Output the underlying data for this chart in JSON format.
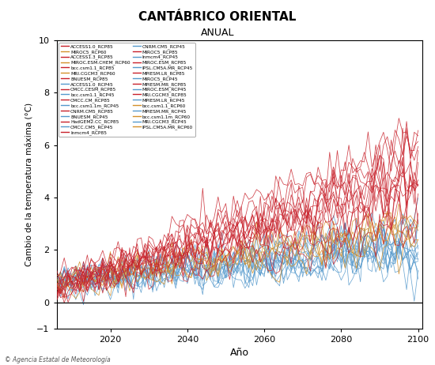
{
  "title": "CANTÁBRICO ORIENTAL",
  "subtitle": "ANUAL",
  "xlabel": "Año",
  "ylabel": "Cambio de la temperatura máxima (°C)",
  "xlim": [
    2006,
    2101
  ],
  "ylim": [
    -1,
    10
  ],
  "yticks": [
    -1,
    0,
    2,
    4,
    6,
    8,
    10
  ],
  "xticks": [
    2020,
    2040,
    2060,
    2080,
    2100
  ],
  "copyright_text": "© Agencia Estatal de Meteorología",
  "rcp85_color": "#C8202A",
  "rcp60_color": "#D4902A",
  "rcp45_color": "#5599CC",
  "legend_left": [
    [
      "ACCESS1.0_RCP85",
      "rcp85"
    ],
    [
      "ACCESS1.3_RCP85",
      "rcp85"
    ],
    [
      "bcc.csm1.1_RCP85",
      "rcp85"
    ],
    [
      "BNUESM_RCP85",
      "rcp85"
    ],
    [
      "CMCC.CESM_RCP85",
      "rcp85"
    ],
    [
      "CMCC.CM_RCP85",
      "rcp85"
    ],
    [
      "CNRM.CM5_RCP85",
      "rcp85"
    ],
    [
      "HadGEM2.CC_RCP85",
      "rcp85"
    ],
    [
      "Inmcm4_RCP85",
      "rcp85"
    ],
    [
      "MIROC5_RCP85",
      "rcp85"
    ],
    [
      "MIROC.ESM_RCP85",
      "rcp85"
    ],
    [
      "MPIESM.LR_RCP85",
      "rcp85"
    ],
    [
      "MPIESM.MR_RCP85",
      "rcp85"
    ],
    [
      "MRI.CGCM3_RCP85",
      "rcp85"
    ],
    [
      "bcc.csm1.1_RCP60",
      "rcp60"
    ],
    [
      "bcc.csm1.1m_RCP60",
      "rcp60"
    ],
    [
      "IPSL.CM5A.MR_RCP60",
      "rcp60"
    ]
  ],
  "legend_right": [
    [
      "MIROC5_RCP60",
      "rcp60"
    ],
    [
      "MIROC.ESM.CHEM_RCP60",
      "rcp60"
    ],
    [
      "MRI.CGCM3_RCP60",
      "rcp60"
    ],
    [
      "ACCESS1.0_RCP45",
      "rcp45"
    ],
    [
      "bcc.csm1.1_RCP45",
      "rcp45"
    ],
    [
      "bcc.csm1.1m_RCP45",
      "rcp45"
    ],
    [
      "BNUESM_RCP45",
      "rcp45"
    ],
    [
      "CMCC.CM5_RCP45",
      "rcp45"
    ],
    [
      "CNRM.CM5_RCP45",
      "rcp45"
    ],
    [
      "Inmcm4_RCP45",
      "rcp45"
    ],
    [
      "IPSL.CM5A.MR_RCP45",
      "rcp45"
    ],
    [
      "MIROC5_RCP45",
      "rcp45"
    ],
    [
      "MIROC.ESM_RCP45",
      "rcp45"
    ],
    [
      "MPIESM.LR_RCP45",
      "rcp45"
    ],
    [
      "MPIESM.MR_RCP45",
      "rcp45"
    ],
    [
      "MRI.CGCM3_RCP45",
      "rcp45"
    ]
  ],
  "n_rcp85": 14,
  "n_rcp60": 6,
  "n_rcp45": 13,
  "start_year": 2006,
  "end_year": 2100
}
